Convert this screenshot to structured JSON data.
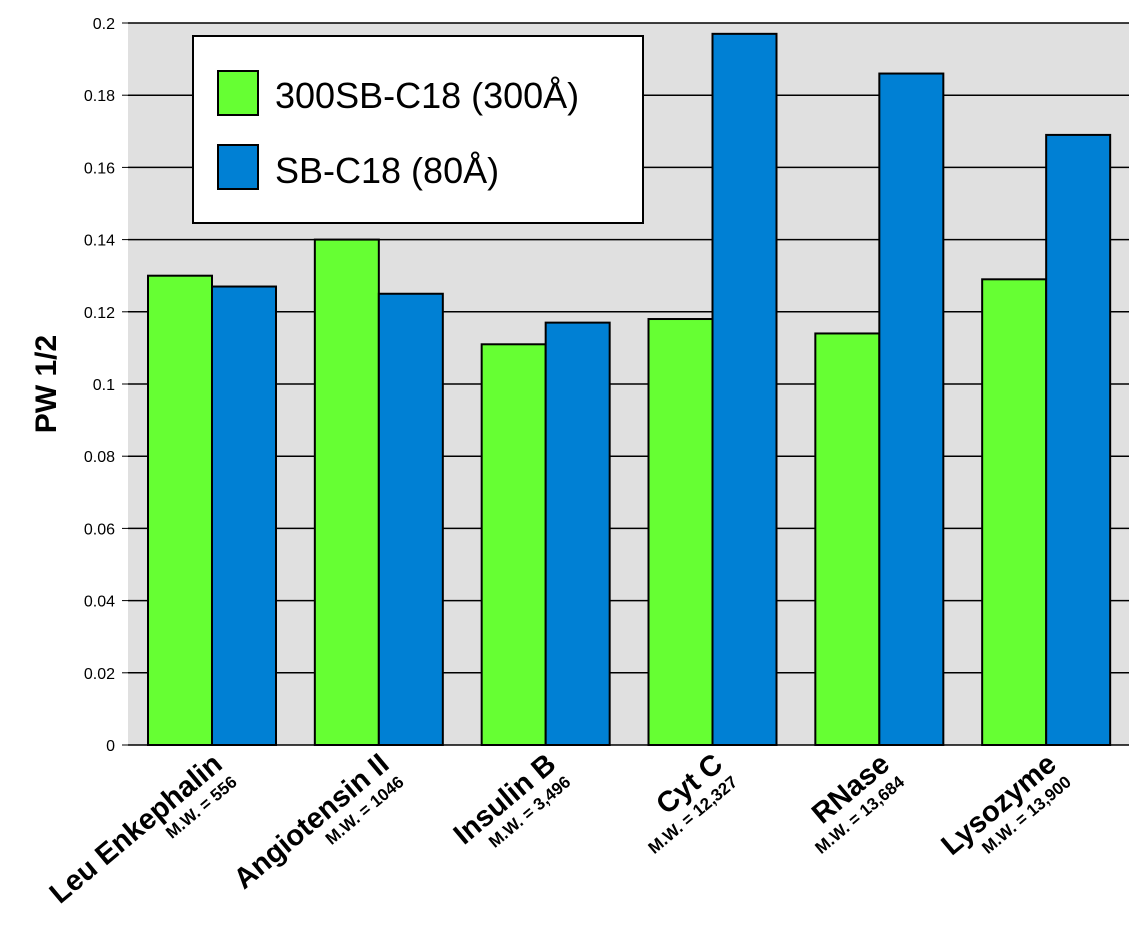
{
  "chart_data": {
    "type": "bar",
    "title": "",
    "xlabel": "",
    "ylabel": "PW 1/2",
    "ylim": [
      0,
      0.2
    ],
    "yticks": [
      "0",
      "0.02",
      "0.04",
      "0.06",
      "0.08",
      "0.1",
      "0.12",
      "0.14",
      "0.16",
      "0.18",
      "0.2"
    ],
    "grid": true,
    "legend_position": "top-left",
    "categories": [
      {
        "name": "Leu Enkephalin",
        "mw": "M.W. = 556"
      },
      {
        "name": "Angiotensin II",
        "mw": "M.W. = 1046"
      },
      {
        "name": "Insulin B",
        "mw": "M.W. = 3,496"
      },
      {
        "name": "Cyt C",
        "mw": "M.W. = 12,327"
      },
      {
        "name": "RNase",
        "mw": "M.W. = 13,684"
      },
      {
        "name": "Lysozyme",
        "mw": "M.W. = 13,900"
      }
    ],
    "series": [
      {
        "name": "300SB-C18 (300Å)",
        "color": "#66ff33",
        "values": [
          0.13,
          0.14,
          0.111,
          0.118,
          0.114,
          0.129
        ]
      },
      {
        "name": "SB-C18 (80Å)",
        "color": "#0080d4",
        "values": [
          0.127,
          0.125,
          0.117,
          0.197,
          0.186,
          0.169
        ]
      }
    ],
    "plot_background": "#e0e0e0"
  }
}
